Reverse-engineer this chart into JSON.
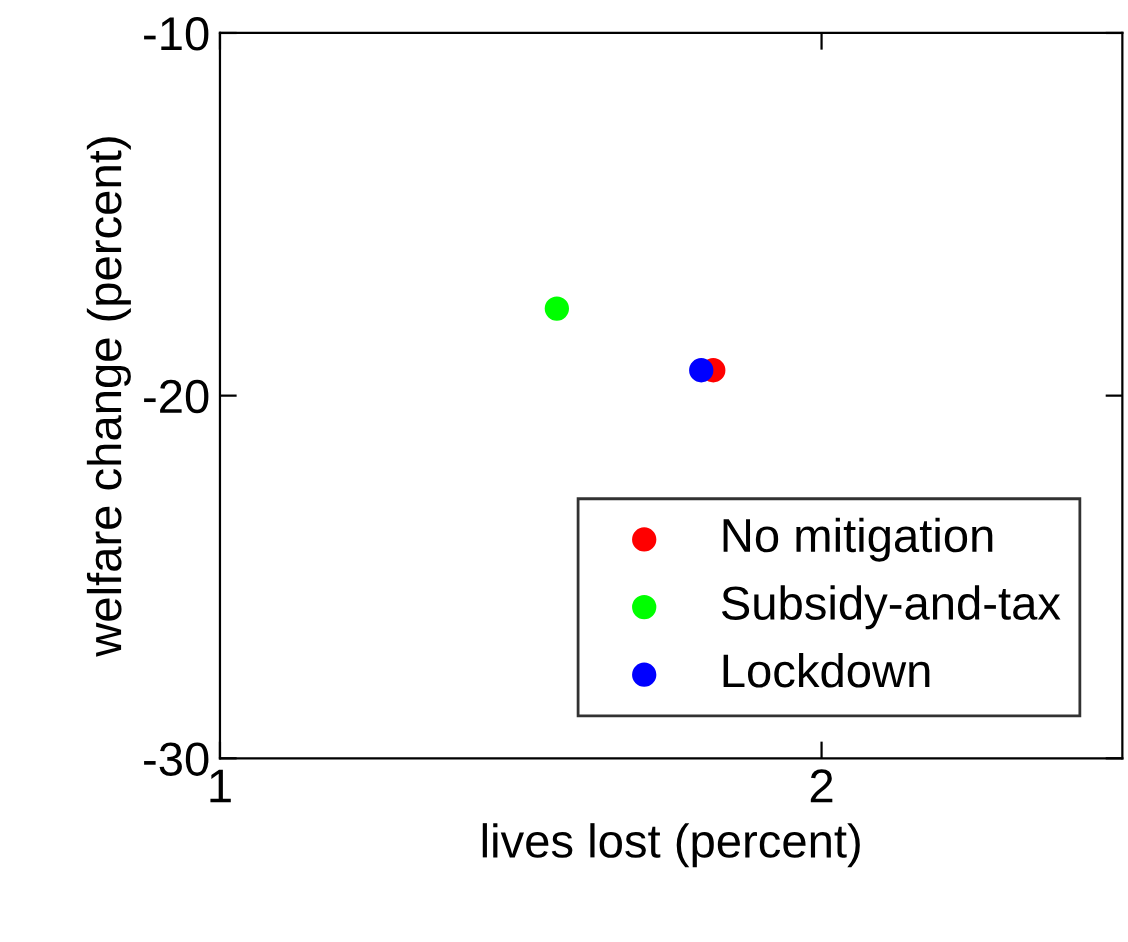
{
  "chart_data": {
    "type": "scatter",
    "xlabel": "lives lost (percent)",
    "ylabel": "welfare change (percent)",
    "series": [
      {
        "name": "No mitigation",
        "color": "#ff0000",
        "x": [
          1.82
        ],
        "values": [
          -19.3
        ]
      },
      {
        "name": "Subsidy-and-tax",
        "color": "#00ff00",
        "x": [
          1.56
        ],
        "values": [
          -17.6
        ]
      },
      {
        "name": "Lockdown",
        "color": "#0000ff",
        "x": [
          1.8
        ],
        "values": [
          -19.3
        ]
      }
    ],
    "xlim": [
      1,
      2.5
    ],
    "ylim": [
      -30,
      -10
    ],
    "xticks": [
      1,
      2
    ],
    "yticks": [
      -30,
      -20,
      -10
    ],
    "legend": "bottom right",
    "marker": "circle",
    "grid": false
  }
}
